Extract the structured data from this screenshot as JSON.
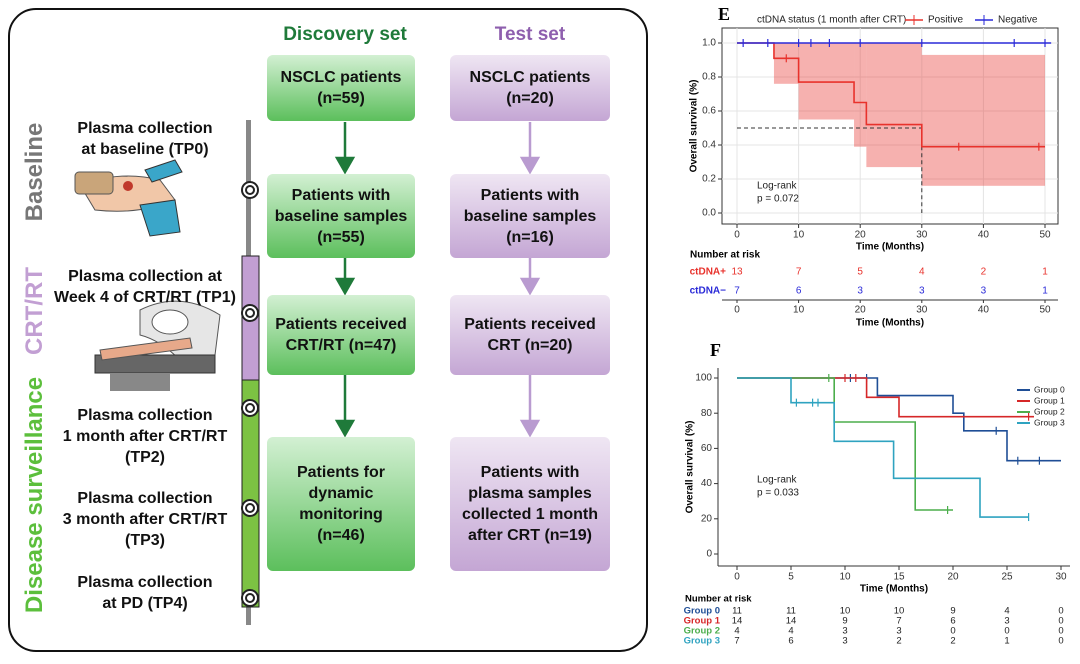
{
  "flowchart": {
    "phases": [
      "Baseline",
      "CRT/RT",
      "Disease surveillance"
    ],
    "timepoints": [
      "Plasma collection\nat baseline (TP0)",
      "Plasma collection at\nWeek 4 of CRT/RT (TP1)",
      "Plasma collection\n1 month after CRT/RT\n(TP2)",
      "Plasma collection\n3 month after CRT/RT\n(TP3)",
      "Plasma collection\nat PD (TP4)"
    ],
    "columns": [
      {
        "title": "Discovery set",
        "boxes": [
          "NSCLC patients\n(n=59)",
          "Patients with\nbaseline samples\n(n=55)",
          "Patients received\nCRT/RT (n=47)",
          "Patients for\ndynamic\nmonitoring\n(n=46)"
        ]
      },
      {
        "title": "Test set",
        "boxes": [
          "NSCLC patients\n(n=20)",
          "Patients with\nbaseline samples\n(n=16)",
          "Patients received\nCRT (n=20)",
          "Patients with\nplasma samples\ncollected 1 month\nafter CRT (n=19)"
        ]
      }
    ]
  },
  "chart_data": [
    {
      "type": "km",
      "panel": "E",
      "xlabel": "Time (Months)",
      "ylabel": "Overall survival (%)",
      "xlim": [
        0,
        50
      ],
      "ylim": [
        0,
        1
      ],
      "xticks": [
        0,
        10,
        20,
        30,
        40,
        50
      ],
      "yticks": [
        {
          "value": 0,
          "label": "0.0"
        },
        0.2,
        0.4,
        0.6,
        0.8,
        {
          "value": 1,
          "label": "1.0"
        }
      ],
      "grid": true,
      "legend": "top",
      "legend_title": "ctDNA status (1 month after CRT)",
      "annotation": [
        "Log-rank",
        "p = 0.072"
      ],
      "median_line": {
        "x": 30,
        "y": 0.5
      },
      "series": [
        {
          "name": "Positive",
          "color": "#e8322c",
          "x": [
            0,
            6,
            10,
            19,
            21,
            30,
            50
          ],
          "values": [
            1,
            0.91,
            0.77,
            0.65,
            0.52,
            0.39,
            0.39
          ],
          "ci_lower": [
            null,
            0.76,
            0.55,
            0.39,
            0.27,
            0.16,
            null
          ],
          "ci_upper": [
            null,
            1,
            1,
            1,
            1,
            0.93,
            null
          ],
          "censor_x": [
            8,
            36,
            49
          ]
        },
        {
          "name": "Negative",
          "color": "#2a2ad8",
          "x": [
            0,
            51
          ],
          "values": [
            1,
            1
          ],
          "censor_x": [
            1,
            5,
            10,
            12,
            15,
            20,
            30,
            45,
            50
          ]
        }
      ],
      "risk_table": {
        "title": "Number at risk",
        "rows": [
          {
            "label": "ctDNA+",
            "color": "#e8322c",
            "values": [
              13,
              7,
              5,
              4,
              2,
              1
            ]
          },
          {
            "label": "ctDNA−",
            "color": "#2a2ad8",
            "values": [
              7,
              6,
              3,
              3,
              3,
              1
            ]
          }
        ],
        "xticks": [
          0,
          10,
          20,
          30,
          40,
          50
        ],
        "xlabel": "Time (Months)"
      }
    },
    {
      "type": "km",
      "panel": "F",
      "xlabel": "Time (Months)",
      "ylabel": "Overall survival (%)",
      "xlim": [
        0,
        30
      ],
      "ylim": [
        0,
        100
      ],
      "xticks": [
        0,
        5,
        10,
        15,
        20,
        25,
        30
      ],
      "yticks": [
        0,
        20,
        40,
        60,
        80,
        100
      ],
      "grid": false,
      "legend": "top-right",
      "annotation": [
        "Log-rank",
        "p = 0.033"
      ],
      "series": [
        {
          "name": "Group 0",
          "color": "#1f4e96",
          "x": [
            0,
            13,
            20,
            21,
            25,
            30
          ],
          "values": [
            100,
            90,
            80,
            70,
            53,
            53
          ],
          "censor_x": [
            10.5,
            12,
            24,
            26,
            28
          ]
        },
        {
          "name": "Group 1",
          "color": "#d62728",
          "x": [
            0,
            12,
            15,
            27.5
          ],
          "values": [
            100,
            89,
            78,
            78
          ],
          "censor_x": [
            10,
            11,
            27
          ]
        },
        {
          "name": "Group 2",
          "color": "#4cae4c",
          "x": [
            0,
            9,
            16.5,
            20
          ],
          "values": [
            100,
            75,
            25,
            25
          ],
          "censor_x": [
            8.5,
            19.5
          ]
        },
        {
          "name": "Group 3",
          "color": "#2fa3c0",
          "x": [
            0,
            5,
            9,
            14.5,
            22.5,
            27
          ],
          "values": [
            100,
            86,
            64,
            43,
            21,
            21
          ],
          "censor_x": [
            5.5,
            7,
            7.5,
            27
          ]
        }
      ],
      "risk_table": {
        "title": "Number at risk",
        "rows": [
          {
            "label": "Group 0",
            "color": "#1f4e96",
            "values": [
              11,
              11,
              10,
              10,
              9,
              4,
              0
            ]
          },
          {
            "label": "Group 1",
            "color": "#d62728",
            "values": [
              14,
              14,
              9,
              7,
              6,
              3,
              0
            ]
          },
          {
            "label": "Group 2",
            "color": "#4cae4c",
            "values": [
              4,
              4,
              3,
              3,
              0,
              0,
              0
            ]
          },
          {
            "label": "Group 3",
            "color": "#2fa3c0",
            "values": [
              7,
              6,
              3,
              2,
              2,
              1,
              0
            ]
          }
        ]
      }
    }
  ]
}
